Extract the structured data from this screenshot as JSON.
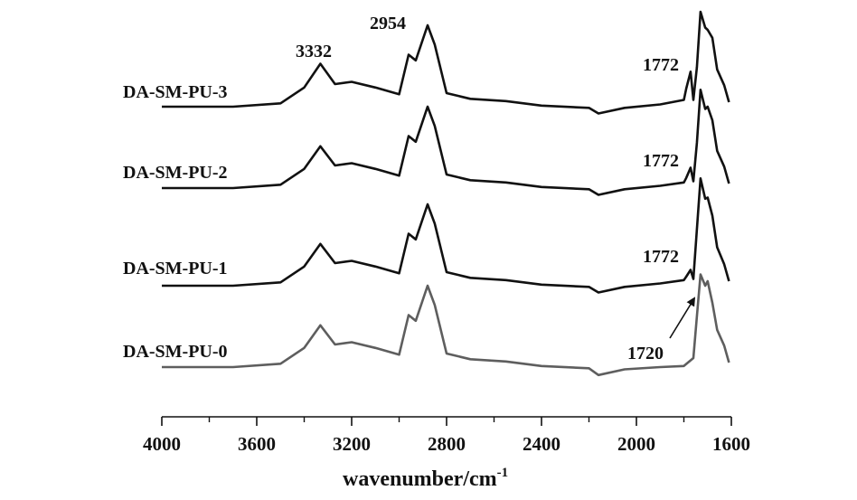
{
  "chart_data": {
    "type": "line",
    "title": "",
    "xlabel": "wavenumber/cm",
    "xlabel_sup": "-1",
    "xlim": [
      4000,
      1600
    ],
    "x_reversed": true,
    "x_ticks": [
      4000,
      3600,
      3200,
      2800,
      2400,
      2000,
      1600
    ],
    "x_tick_labels": [
      "4000",
      "3600",
      "3200",
      "2800",
      "2400",
      "2000",
      "1600"
    ],
    "y_axis_visible": false,
    "grid": false,
    "legend": "none",
    "series": [
      {
        "name": "DA-SM-PU-3",
        "color": "#111111",
        "points": [
          [
            4000,
            0
          ],
          [
            3700,
            0
          ],
          [
            3500,
            0.03
          ],
          [
            3400,
            0.17
          ],
          [
            3332,
            0.38
          ],
          [
            3270,
            0.2
          ],
          [
            3200,
            0.22
          ],
          [
            3100,
            0.17
          ],
          [
            3000,
            0.11
          ],
          [
            2960,
            0.46
          ],
          [
            2930,
            0.41
          ],
          [
            2880,
            0.72
          ],
          [
            2850,
            0.55
          ],
          [
            2800,
            0.12
          ],
          [
            2700,
            0.07
          ],
          [
            2550,
            0.05
          ],
          [
            2400,
            0.01
          ],
          [
            2200,
            -0.01
          ],
          [
            2160,
            -0.06
          ],
          [
            2050,
            -0.01
          ],
          [
            1900,
            0.02
          ],
          [
            1800,
            0.06
          ],
          [
            1790,
            0.16
          ],
          [
            1772,
            0.31
          ],
          [
            1760,
            0.06
          ],
          [
            1745,
            0.35
          ],
          [
            1730,
            0.84
          ],
          [
            1710,
            0.7
          ],
          [
            1700,
            0.68
          ],
          [
            1680,
            0.61
          ],
          [
            1660,
            0.33
          ],
          [
            1630,
            0.19
          ],
          [
            1610,
            0.04
          ]
        ]
      },
      {
        "name": "DA-SM-PU-2",
        "color": "#111111",
        "points": [
          [
            4000,
            0
          ],
          [
            3700,
            0
          ],
          [
            3500,
            0.03
          ],
          [
            3400,
            0.17
          ],
          [
            3332,
            0.37
          ],
          [
            3270,
            0.2
          ],
          [
            3200,
            0.22
          ],
          [
            3100,
            0.17
          ],
          [
            3000,
            0.11
          ],
          [
            2960,
            0.46
          ],
          [
            2930,
            0.41
          ],
          [
            2880,
            0.72
          ],
          [
            2850,
            0.55
          ],
          [
            2800,
            0.12
          ],
          [
            2700,
            0.07
          ],
          [
            2550,
            0.05
          ],
          [
            2400,
            0.01
          ],
          [
            2200,
            -0.01
          ],
          [
            2160,
            -0.06
          ],
          [
            2050,
            -0.01
          ],
          [
            1900,
            0.02
          ],
          [
            1800,
            0.05
          ],
          [
            1790,
            0.09
          ],
          [
            1772,
            0.18
          ],
          [
            1760,
            0.06
          ],
          [
            1745,
            0.4
          ],
          [
            1730,
            0.87
          ],
          [
            1710,
            0.7
          ],
          [
            1700,
            0.72
          ],
          [
            1680,
            0.6
          ],
          [
            1660,
            0.33
          ],
          [
            1630,
            0.19
          ],
          [
            1610,
            0.04
          ]
        ]
      },
      {
        "name": "DA-SM-PU-1",
        "color": "#111111",
        "points": [
          [
            4000,
            0
          ],
          [
            3700,
            0
          ],
          [
            3500,
            0.03
          ],
          [
            3400,
            0.17
          ],
          [
            3332,
            0.37
          ],
          [
            3270,
            0.2
          ],
          [
            3200,
            0.22
          ],
          [
            3100,
            0.17
          ],
          [
            3000,
            0.11
          ],
          [
            2960,
            0.46
          ],
          [
            2930,
            0.41
          ],
          [
            2880,
            0.72
          ],
          [
            2850,
            0.55
          ],
          [
            2800,
            0.12
          ],
          [
            2700,
            0.07
          ],
          [
            2550,
            0.05
          ],
          [
            2400,
            0.01
          ],
          [
            2200,
            -0.01
          ],
          [
            2160,
            -0.06
          ],
          [
            2050,
            -0.01
          ],
          [
            1900,
            0.02
          ],
          [
            1800,
            0.05
          ],
          [
            1790,
            0.08
          ],
          [
            1772,
            0.14
          ],
          [
            1760,
            0.06
          ],
          [
            1745,
            0.5
          ],
          [
            1730,
            0.95
          ],
          [
            1710,
            0.77
          ],
          [
            1700,
            0.78
          ],
          [
            1680,
            0.62
          ],
          [
            1660,
            0.34
          ],
          [
            1630,
            0.19
          ],
          [
            1610,
            0.04
          ]
        ]
      },
      {
        "name": "DA-SM-PU-0",
        "color": "#5e5e5e",
        "points": [
          [
            4000,
            0
          ],
          [
            3700,
            0
          ],
          [
            3500,
            0.03
          ],
          [
            3400,
            0.17
          ],
          [
            3332,
            0.37
          ],
          [
            3270,
            0.2
          ],
          [
            3200,
            0.22
          ],
          [
            3100,
            0.17
          ],
          [
            3000,
            0.11
          ],
          [
            2960,
            0.46
          ],
          [
            2930,
            0.41
          ],
          [
            2880,
            0.72
          ],
          [
            2850,
            0.55
          ],
          [
            2800,
            0.12
          ],
          [
            2700,
            0.07
          ],
          [
            2550,
            0.05
          ],
          [
            2400,
            0.01
          ],
          [
            2200,
            -0.01
          ],
          [
            2160,
            -0.07
          ],
          [
            2050,
            -0.02
          ],
          [
            1900,
            0.0
          ],
          [
            1800,
            0.01
          ],
          [
            1760,
            0.08
          ],
          [
            1745,
            0.45
          ],
          [
            1730,
            0.82
          ],
          [
            1710,
            0.72
          ],
          [
            1700,
            0.76
          ],
          [
            1680,
            0.57
          ],
          [
            1660,
            0.33
          ],
          [
            1630,
            0.19
          ],
          [
            1610,
            0.04
          ]
        ]
      }
    ],
    "peak_labels": [
      {
        "text": "3332",
        "x": 3332,
        "series": "DA-SM-PU-3"
      },
      {
        "text": "2954",
        "x": 2954,
        "series": "DA-SM-PU-3"
      },
      {
        "text": "1772",
        "x": 1772,
        "series": "DA-SM-PU-3"
      },
      {
        "text": "1772",
        "x": 1772,
        "series": "DA-SM-PU-2"
      },
      {
        "text": "1772",
        "x": 1772,
        "series": "DA-SM-PU-1"
      },
      {
        "text": "1720",
        "x": 1720,
        "series": "DA-SM-PU-0"
      }
    ]
  }
}
